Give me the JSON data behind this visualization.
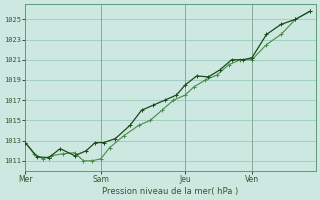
{
  "bg_color": "#cce8e0",
  "grid_color": "#99ccbb",
  "line_color_light": "#4a8a4a",
  "line_color_dark": "#1a4a1a",
  "ylabel_ticks": [
    1011,
    1013,
    1015,
    1017,
    1019,
    1021,
    1023,
    1025
  ],
  "ylim": [
    1010.0,
    1026.5
  ],
  "xlabel": "Pression niveau de la mer( hPa )",
  "day_labels": [
    "Mer",
    "Sam",
    "Jeu",
    "Ven"
  ],
  "day_positions": [
    0.0,
    0.26,
    0.55,
    0.78
  ],
  "series1_x": [
    0.0,
    0.03,
    0.06,
    0.09,
    0.13,
    0.17,
    0.2,
    0.23,
    0.26,
    0.29,
    0.34,
    0.39,
    0.43,
    0.47,
    0.51,
    0.55,
    0.58,
    0.62,
    0.66,
    0.7,
    0.74,
    0.78,
    0.83,
    0.88,
    0.93,
    0.98
  ],
  "series1_y": [
    1012.8,
    1011.7,
    1011.2,
    1011.5,
    1011.7,
    1011.8,
    1011.0,
    1011.0,
    1011.2,
    1012.3,
    1013.5,
    1014.5,
    1015.0,
    1016.0,
    1017.0,
    1017.5,
    1018.3,
    1019.0,
    1019.5,
    1020.5,
    1021.0,
    1021.0,
    1022.5,
    1023.5,
    1025.0,
    1025.8
  ],
  "series2_x": [
    0.0,
    0.04,
    0.08,
    0.12,
    0.17,
    0.21,
    0.24,
    0.27,
    0.31,
    0.36,
    0.4,
    0.44,
    0.48,
    0.52,
    0.55,
    0.59,
    0.63,
    0.67,
    0.71,
    0.75,
    0.78,
    0.83,
    0.88,
    0.93,
    0.98
  ],
  "series2_y": [
    1012.8,
    1011.4,
    1011.3,
    1012.2,
    1011.5,
    1012.0,
    1012.8,
    1012.8,
    1013.2,
    1014.5,
    1016.0,
    1016.5,
    1017.0,
    1017.5,
    1018.5,
    1019.4,
    1019.3,
    1020.0,
    1021.0,
    1021.0,
    1021.2,
    1023.5,
    1024.5,
    1025.0,
    1025.8
  ]
}
